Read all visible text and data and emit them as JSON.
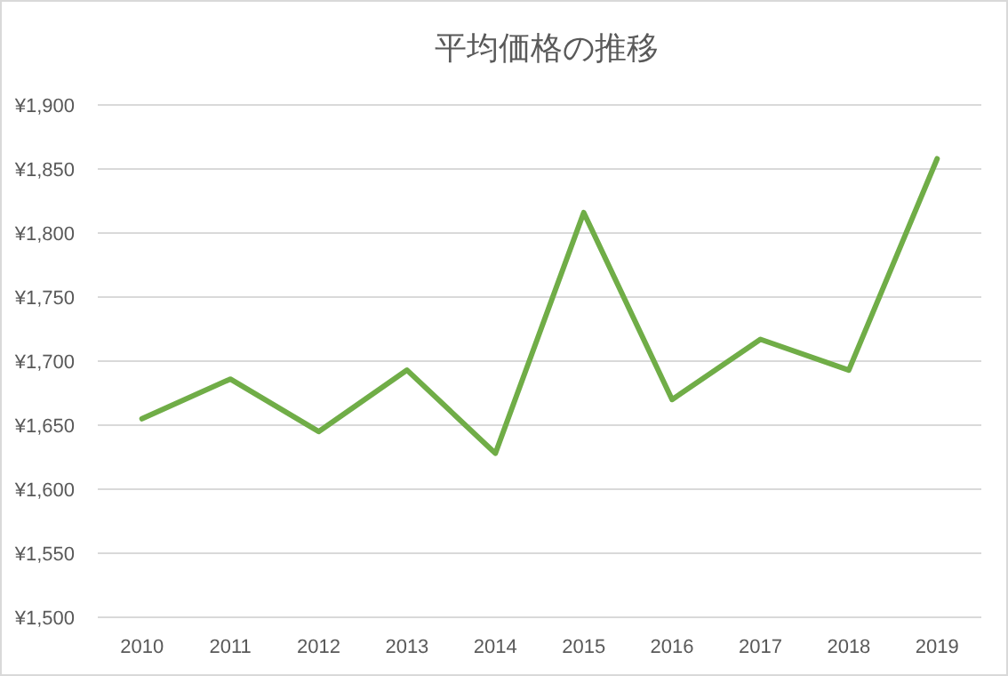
{
  "chart_data": {
    "type": "line",
    "title": "平均価格の推移",
    "categories": [
      "2010",
      "2011",
      "2012",
      "2013",
      "2014",
      "2015",
      "2016",
      "2017",
      "2018",
      "2019"
    ],
    "series": [
      {
        "color": "#70ad47",
        "values": [
          1655,
          1686,
          1645,
          1693,
          1628,
          1816,
          1670,
          1717,
          1693,
          1858
        ]
      }
    ],
    "ylim": [
      1500,
      1900
    ],
    "yticks": [
      {
        "value": 1500,
        "label": "¥1,500"
      },
      {
        "value": 1550,
        "label": "¥1,550"
      },
      {
        "value": 1600,
        "label": "¥1,600"
      },
      {
        "value": 1650,
        "label": "¥1,650"
      },
      {
        "value": 1700,
        "label": "¥1,700"
      },
      {
        "value": 1750,
        "label": "¥1,750"
      },
      {
        "value": 1800,
        "label": "¥1,800"
      },
      {
        "value": 1850,
        "label": "¥1,850"
      },
      {
        "value": 1900,
        "label": "¥1,900"
      }
    ],
    "grid": "y",
    "marker": "none",
    "line_style": "solid"
  }
}
